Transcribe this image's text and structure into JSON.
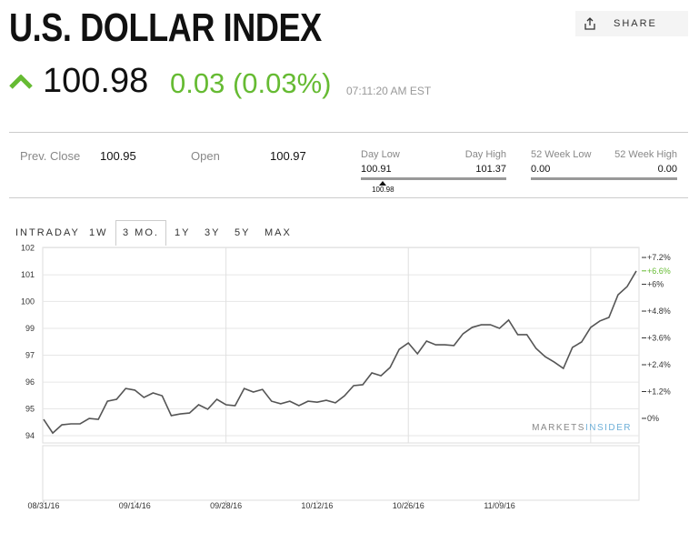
{
  "header": {
    "title": "U.S. DOLLAR INDEX",
    "share": "SHARE",
    "price": "100.98",
    "change": "0.03 (0.03%)",
    "time": "07:11:20 AM EST"
  },
  "stats": {
    "prev_close_label": "Prev. Close",
    "prev_close": "100.95",
    "open_label": "Open",
    "open": "100.97",
    "day_low_label": "Day Low",
    "day_high_label": "Day High",
    "day_low": 100.91,
    "day_high": 101.37,
    "day_current": 100.98,
    "week52_low_label": "52 Week Low",
    "week52_high_label": "52 Week High",
    "week52_low": "0.00",
    "week52_high": "0.00"
  },
  "tabs": [
    "INTRADAY",
    "1W",
    "3 MO.",
    "1Y",
    "3Y",
    "5Y",
    "MAX"
  ],
  "active_tab": "3 MO.",
  "watermark": {
    "left": "MARKETS",
    "right": "INSIDER"
  },
  "chart_data": {
    "type": "line",
    "categories": [
      "08/31/16",
      null,
      null,
      null,
      null,
      null,
      null,
      null,
      null,
      null,
      "09/14/16",
      null,
      null,
      null,
      null,
      null,
      null,
      null,
      null,
      null,
      "09/28/16",
      null,
      null,
      null,
      null,
      null,
      null,
      null,
      null,
      null,
      "10/12/16",
      null,
      null,
      null,
      null,
      null,
      null,
      null,
      null,
      null,
      "10/26/16",
      null,
      null,
      null,
      null,
      null,
      null,
      null,
      null,
      null,
      "11/09/16",
      null,
      null,
      null,
      null,
      null,
      null,
      null,
      null,
      null,
      null,
      null,
      null,
      null,
      null,
      null
    ],
    "series": [
      {
        "name": "U.S. Dollar Index",
        "color": "#555555",
        "values": [
          94.69,
          94.11,
          94.46,
          94.5,
          94.5,
          94.73,
          94.69,
          95.46,
          95.54,
          96.0,
          95.93,
          95.62,
          95.81,
          95.69,
          94.85,
          94.92,
          94.96,
          95.31,
          95.12,
          95.54,
          95.31,
          95.27,
          96.0,
          95.85,
          95.96,
          95.46,
          95.35,
          95.46,
          95.27,
          95.46,
          95.42,
          95.5,
          95.39,
          95.69,
          96.12,
          96.16,
          96.66,
          96.54,
          96.89,
          97.66,
          97.93,
          97.47,
          98.01,
          97.85,
          97.85,
          97.82,
          98.32,
          98.59,
          98.7,
          98.7,
          98.55,
          98.9,
          98.28,
          98.28,
          97.7,
          97.35,
          97.12,
          96.85,
          97.74,
          97.97,
          98.59,
          98.86,
          99.01,
          99.97,
          100.32,
          100.98
        ]
      }
    ],
    "ylim": [
      93.69,
      101.98
    ],
    "yticks": [
      {
        "value": 94.0,
        "label": "94"
      },
      {
        "value": 95.14,
        "label": "95"
      },
      {
        "value": 96.27,
        "label": "96"
      },
      {
        "value": 97.41,
        "label": "97"
      },
      {
        "value": 98.55,
        "label": "99"
      },
      {
        "value": 99.69,
        "label": "100"
      },
      {
        "value": 100.82,
        "label": "101"
      },
      {
        "value": 101.96,
        "label": "102"
      }
    ],
    "y2lim": [
      -1.1,
      7.65
    ],
    "y2ticks": [
      {
        "value": 0,
        "label": "0%"
      },
      {
        "value": 1.2,
        "label": "+1.2%"
      },
      {
        "value": 2.4,
        "label": "+2.4%"
      },
      {
        "value": 3.6,
        "label": "+3.6%"
      },
      {
        "value": 4.8,
        "label": "+4.8%"
      },
      {
        "value": 6,
        "label": "+6%"
      },
      {
        "value": 7.2,
        "label": "+7.2%"
      }
    ],
    "current_label": {
      "value": 6.6,
      "label": "+6.6%",
      "color": "#66bb33"
    },
    "grid": true
  }
}
